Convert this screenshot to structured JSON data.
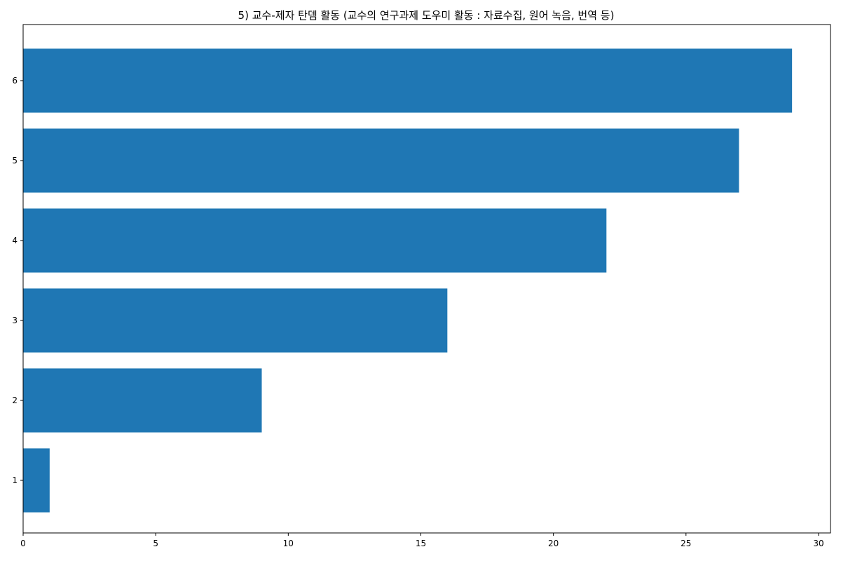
{
  "chart_data": {
    "type": "bar",
    "orientation": "horizontal",
    "title": "5) 교수-제자 탄뎀 활동 (교수의 연구과제 도우미 활동 : 자료수집, 원어 녹음, 번역 등)",
    "xlabel": "",
    "ylabel": "",
    "categories": [
      "1",
      "2",
      "3",
      "4",
      "5",
      "6"
    ],
    "values": [
      1,
      9,
      16,
      22,
      27,
      29
    ],
    "xlim": [
      0,
      30.45
    ],
    "xticks": [
      0,
      5,
      10,
      15,
      20,
      25,
      30
    ],
    "grid": false,
    "legend": "none",
    "colors": {
      "bar": "#1f77b4",
      "axis": "#000000",
      "background": "#ffffff"
    }
  }
}
